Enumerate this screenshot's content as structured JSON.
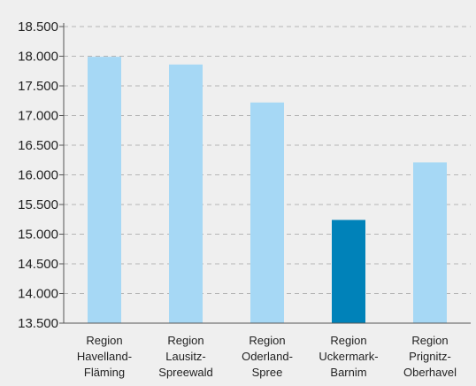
{
  "chart_data": {
    "type": "bar",
    "categories": [
      [
        "Region",
        "Havelland-",
        "Fläming"
      ],
      [
        "Region",
        "Lausitz-",
        "Spreewald"
      ],
      [
        "Region",
        "Oderland-",
        "Spree"
      ],
      [
        "Region",
        "Uckermark-",
        "Barnim"
      ],
      [
        "Region",
        "Prignitz-",
        "Oberhavel"
      ]
    ],
    "values": [
      17990,
      17860,
      17220,
      15240,
      16210
    ],
    "ylim": [
      13500,
      18500
    ],
    "yticks": [
      13500,
      14000,
      14500,
      15000,
      15500,
      16000,
      16500,
      17000,
      17500,
      18000,
      18500
    ],
    "ytick_labels": [
      "13.500",
      "14.000",
      "14.500",
      "15.000",
      "15.500",
      "16.000",
      "16.500",
      "17.000",
      "17.500",
      "18.000",
      "18.500"
    ],
    "grid": "horizontal dashed",
    "colors": {
      "bar": "#a6d8f5",
      "highlight_bar": "#0082b9",
      "highlight_index": 3,
      "grid": "#b5b5b5",
      "axis": "#555555",
      "background": "#efefef"
    }
  }
}
